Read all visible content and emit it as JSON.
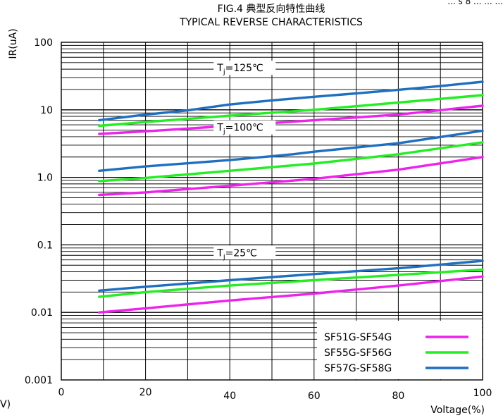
{
  "chart_data": {
    "type": "line",
    "title": "FIG.4 典型反向特性曲线",
    "subtitle": "TYPICAL REVERSE CHARACTERISTICS",
    "ylabel": "IR(uA)",
    "xlabel": "Voltage(%)",
    "corner_text_top": "... s 8 ... ... ...",
    "corner_text_left": "V)",
    "x_scale": "linear",
    "y_scale": "log",
    "xlim": [
      0,
      100
    ],
    "ylim": [
      0.001,
      100
    ],
    "x_ticks": [
      "0",
      "20",
      "40",
      "60",
      "80",
      "100"
    ],
    "x_tick_values": [
      0,
      20,
      40,
      60,
      80,
      100
    ],
    "y_ticks": [
      "100",
      "10",
      "1.0",
      "0.1",
      "0.01",
      "0.001"
    ],
    "y_tick_values": [
      100,
      10,
      1,
      0.1,
      0.01,
      0.001
    ],
    "grid": true,
    "legend_position": "bottom-right",
    "annotations": [
      {
        "prefix": "T",
        "sub": "j",
        "suffix": "=125℃",
        "x": 37,
        "y": 42
      },
      {
        "prefix": "T",
        "sub": "j",
        "suffix": "=100℃",
        "x": 37,
        "y": 5.5
      },
      {
        "prefix": "T",
        "sub": "j",
        "suffix": "=25℃",
        "x": 37,
        "y": 0.077
      }
    ],
    "legend": [
      {
        "label": "SF51G-SF54G",
        "color": "#ee22ee"
      },
      {
        "label": "SF55G-SF56G",
        "color": "#22ee22"
      },
      {
        "label": "SF57G-SF58G",
        "color": "#1f6fc0"
      }
    ],
    "series": [
      {
        "group": "SF57G-SF58G",
        "condition": "Tj=125℃",
        "color": "#1f6fc0",
        "x": [
          9,
          20,
          30,
          40,
          50,
          60,
          70,
          80,
          90,
          100
        ],
        "y": [
          7,
          8.5,
          9.8,
          12,
          13.8,
          15.6,
          17.5,
          19.8,
          22.5,
          26
        ]
      },
      {
        "group": "SF55G-SF56G",
        "condition": "Tj=125℃",
        "color": "#22ee22",
        "x": [
          9,
          20,
          40,
          60,
          80,
          100
        ],
        "y": [
          5.8,
          6.6,
          8.2,
          10,
          12.8,
          16.5
        ]
      },
      {
        "group": "SF51G-SF54G",
        "condition": "Tj=125℃",
        "color": "#ee22ee",
        "x": [
          9,
          20,
          40,
          60,
          80,
          100
        ],
        "y": [
          4.4,
          4.8,
          5.8,
          7,
          8.5,
          11.5
        ]
      },
      {
        "group": "SF57G-SF58G",
        "condition": "Tj=100℃",
        "color": "#1f6fc0",
        "x": [
          9,
          20,
          40,
          55,
          60,
          80,
          100
        ],
        "y": [
          1.25,
          1.45,
          1.8,
          2.2,
          2.4,
          3.2,
          4.9
        ]
      },
      {
        "group": "SF55G-SF56G",
        "condition": "Tj=100℃",
        "color": "#22ee22",
        "x": [
          9,
          20,
          40,
          60,
          80,
          100
        ],
        "y": [
          0.88,
          0.98,
          1.25,
          1.6,
          2.2,
          3.3
        ]
      },
      {
        "group": "SF51G-SF54G",
        "condition": "Tj=100℃",
        "color": "#ee22ee",
        "x": [
          9,
          20,
          40,
          60,
          80,
          100
        ],
        "y": [
          0.55,
          0.6,
          0.75,
          0.95,
          1.3,
          2
        ]
      },
      {
        "group": "SF57G-SF58G",
        "condition": "Tj=25℃",
        "color": "#1f6fc0",
        "x": [
          9,
          20,
          40,
          60,
          80,
          100
        ],
        "y": [
          0.021,
          0.024,
          0.03,
          0.037,
          0.045,
          0.058
        ]
      },
      {
        "group": "SF55G-SF56G",
        "condition": "Tj=25℃",
        "color": "#22ee22",
        "x": [
          9,
          20,
          40,
          60,
          80,
          100
        ],
        "y": [
          0.017,
          0.02,
          0.025,
          0.03,
          0.036,
          0.043
        ]
      },
      {
        "group": "SF51G-SF54G",
        "condition": "Tj=25℃",
        "color": "#ee22ee",
        "x": [
          9,
          20,
          40,
          60,
          80,
          100
        ],
        "y": [
          0.01,
          0.0115,
          0.015,
          0.019,
          0.025,
          0.034
        ]
      }
    ]
  }
}
